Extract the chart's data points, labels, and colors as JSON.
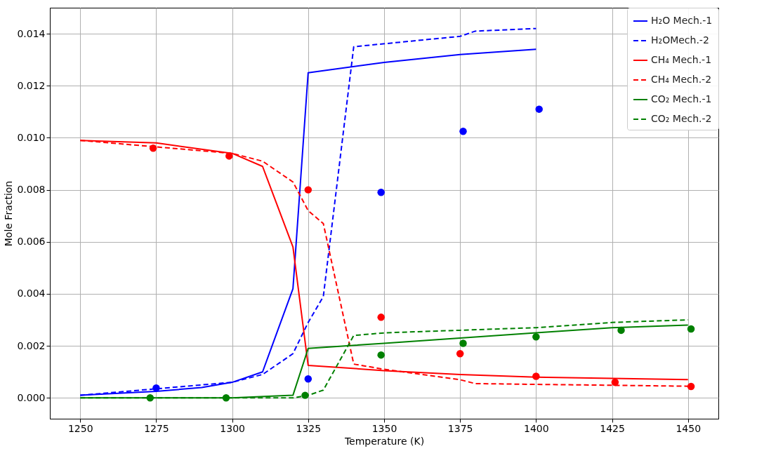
{
  "chart_data": {
    "type": "line",
    "xlabel": "Temperature (K)",
    "ylabel": "Mole Fraction",
    "xlim": [
      1240,
      1460
    ],
    "xticks": [
      1250,
      1275,
      1300,
      1325,
      1350,
      1375,
      1400,
      1425,
      1450
    ],
    "ylim": [
      -0.0008,
      0.015
    ],
    "yticks": [
      {
        "value": 0,
        "label": "0.000"
      },
      0.002,
      0.004,
      0.006,
      0.008,
      {
        "value": 0.01,
        "label": "0.010"
      },
      0.012,
      0.014
    ],
    "grid": true,
    "legend": "top right",
    "series": [
      {
        "name": "H₂O Mech.-1",
        "color": "#0000ff",
        "line_style": "solid",
        "x": [
          1250,
          1275,
          1290,
          1300,
          1310,
          1320,
          1325,
          1350,
          1375,
          1400
        ],
        "values": [
          0.0001,
          0.00025,
          0.0004,
          0.0006,
          0.001,
          0.0042,
          0.0125,
          0.0129,
          0.0132,
          0.0134
        ]
      },
      {
        "name": "H₂OMech.-2",
        "color": "#0000ff",
        "line_style": "dashed",
        "x": [
          1250,
          1300,
          1310,
          1320,
          1325,
          1330,
          1340,
          1375,
          1380,
          1400
        ],
        "values": [
          0.0001,
          0.0006,
          0.0009,
          0.0017,
          0.0029,
          0.0039,
          0.0135,
          0.0139,
          0.0141,
          0.0142
        ]
      },
      {
        "name": "CH₄ Mech.-1",
        "color": "#ff0000",
        "line_style": "solid",
        "x": [
          1250,
          1275,
          1300,
          1310,
          1320,
          1325,
          1350,
          1375,
          1400,
          1450
        ],
        "values": [
          0.0099,
          0.0098,
          0.0094,
          0.0089,
          0.0058,
          0.00125,
          0.00105,
          0.0009,
          0.0008,
          0.0007
        ]
      },
      {
        "name": "CH₄ Mech.-2",
        "color": "#ff0000",
        "line_style": "dashed",
        "x": [
          1250,
          1300,
          1310,
          1320,
          1325,
          1330,
          1340,
          1350,
          1375,
          1380,
          1400,
          1450
        ],
        "values": [
          0.0099,
          0.0094,
          0.0091,
          0.0083,
          0.0072,
          0.0067,
          0.0013,
          0.0011,
          0.0007,
          0.00055,
          0.00052,
          0.00045
        ]
      },
      {
        "name": "CO₂ Mech.-1",
        "color": "#008000",
        "line_style": "solid",
        "x": [
          1250,
          1300,
          1320,
          1325,
          1350,
          1375,
          1400,
          1425,
          1450
        ],
        "values": [
          0.0,
          0.0,
          0.0001,
          0.0019,
          0.0021,
          0.0023,
          0.0025,
          0.0027,
          0.0028
        ]
      },
      {
        "name": "CO₂ Mech.-2",
        "color": "#008000",
        "line_style": "dashed",
        "x": [
          1250,
          1320,
          1325,
          1330,
          1340,
          1350,
          1375,
          1400,
          1425,
          1450
        ],
        "values": [
          0.0,
          0.0,
          0.0001,
          0.0003,
          0.0024,
          0.0025,
          0.0026,
          0.0027,
          0.0029,
          0.003
        ]
      },
      {
        "type": "scatter",
        "color": "#0000ff",
        "marker": "circle",
        "x": [
          1275,
          1325,
          1349,
          1376,
          1401
        ],
        "values": [
          0.00038,
          0.00073,
          0.0079,
          0.01025,
          0.0111
        ]
      },
      {
        "type": "scatter",
        "color": "#ff0000",
        "marker": "circle",
        "x": [
          1274,
          1299,
          1325,
          1349,
          1375,
          1400,
          1426,
          1451
        ],
        "values": [
          0.0096,
          0.0093,
          0.008,
          0.0031,
          0.0017,
          0.00083,
          0.0006,
          0.00044
        ]
      },
      {
        "type": "scatter",
        "color": "#008000",
        "marker": "circle",
        "x": [
          1273,
          1298,
          1324,
          1349,
          1376,
          1400,
          1428,
          1451
        ],
        "values": [
          0.0,
          0.0,
          0.0001,
          0.00165,
          0.0021,
          0.00235,
          0.0026,
          0.00265
        ]
      }
    ]
  }
}
